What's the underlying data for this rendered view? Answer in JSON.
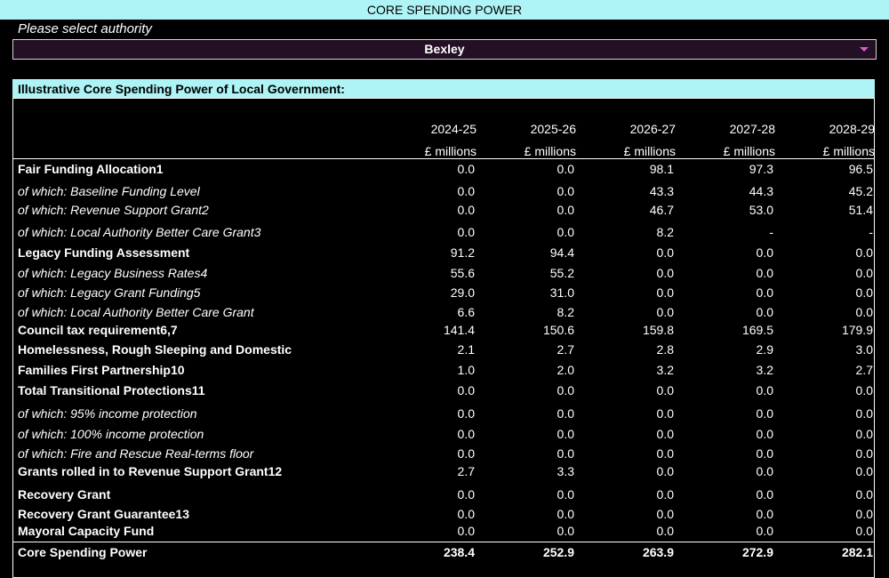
{
  "header": {
    "title": "CORE SPENDING POWER"
  },
  "selector": {
    "label": "Please select authority",
    "selected": "Bexley"
  },
  "table": {
    "title": "Illustrative Core Spending Power of Local Government:",
    "columns": [
      {
        "year": "2024-25",
        "unit": "£ millions"
      },
      {
        "year": "2025-26",
        "unit": "£ millions"
      },
      {
        "year": "2026-27",
        "unit": "£ millions"
      },
      {
        "year": "2027-28",
        "unit": "£ millions"
      },
      {
        "year": "2028-29",
        "unit": "£ millions"
      }
    ],
    "rows": [
      {
        "label": "Fair Funding Allocation1",
        "values": [
          "0.0",
          "0.0",
          "98.1",
          "97.3",
          "96.5"
        ]
      },
      {
        "label": "of which: Baseline Funding Level",
        "values": [
          "0.0",
          "0.0",
          "43.3",
          "44.3",
          "45.2"
        ]
      },
      {
        "label": "of which: Revenue Support Grant2",
        "values": [
          "0.0",
          "0.0",
          "46.7",
          "53.0",
          "51.4"
        ]
      },
      {
        "label": "of which: Local Authority Better Care Grant3",
        "values": [
          "0.0",
          "0.0",
          "8.2",
          "-",
          "-"
        ]
      },
      {
        "label": "Legacy Funding Assessment",
        "values": [
          "91.2",
          "94.4",
          "0.0",
          "0.0",
          "0.0"
        ]
      },
      {
        "label": "of which: Legacy Business Rates4",
        "values": [
          "55.6",
          "55.2",
          "0.0",
          "0.0",
          "0.0"
        ]
      },
      {
        "label": "of which: Legacy Grant Funding5",
        "values": [
          "29.0",
          "31.0",
          "0.0",
          "0.0",
          "0.0"
        ]
      },
      {
        "label": "of which: Local Authority Better Care Grant",
        "values": [
          "6.6",
          "8.2",
          "0.0",
          "0.0",
          "0.0"
        ]
      },
      {
        "label": "Council tax requirement6,7",
        "values": [
          "141.4",
          "150.6",
          "159.8",
          "169.5",
          "179.9"
        ]
      },
      {
        "label": "Homelessness, Rough Sleeping and Domestic",
        "values": [
          "2.1",
          "2.7",
          "2.8",
          "2.9",
          "3.0"
        ]
      },
      {
        "label": "Families First Partnership10",
        "values": [
          "1.0",
          "2.0",
          "3.2",
          "3.2",
          "2.7"
        ]
      },
      {
        "label": "Total Transitional Protections11",
        "values": [
          "0.0",
          "0.0",
          "0.0",
          "0.0",
          "0.0"
        ]
      },
      {
        "label": "of which: 95% income protection",
        "values": [
          "0.0",
          "0.0",
          "0.0",
          "0.0",
          "0.0"
        ]
      },
      {
        "label": "of which: 100% income protection",
        "values": [
          "0.0",
          "0.0",
          "0.0",
          "0.0",
          "0.0"
        ]
      },
      {
        "label": "of which: Fire and Rescue Real-terms floor",
        "values": [
          "0.0",
          "0.0",
          "0.0",
          "0.0",
          "0.0"
        ]
      },
      {
        "label": "Grants rolled in to Revenue Support Grant12",
        "values": [
          "2.7",
          "3.3",
          "0.0",
          "0.0",
          "0.0"
        ]
      },
      {
        "label": "Recovery Grant",
        "values": [
          "0.0",
          "0.0",
          "0.0",
          "0.0",
          "0.0"
        ]
      },
      {
        "label": "Recovery Grant Guarantee13",
        "values": [
          "0.0",
          "0.0",
          "0.0",
          "0.0",
          "0.0"
        ]
      },
      {
        "label": "Mayoral Capacity Fund",
        "values": [
          "0.0",
          "0.0",
          "0.0",
          "0.0",
          "0.0"
        ]
      },
      {
        "label": "Core Spending Power",
        "values": [
          "238.4",
          "252.9",
          "263.9",
          "272.9",
          "282.1"
        ]
      }
    ]
  }
}
